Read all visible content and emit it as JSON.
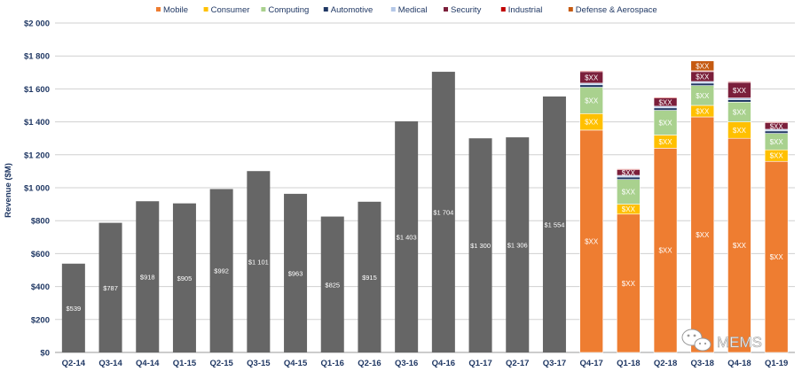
{
  "chart_data": {
    "type": "bar",
    "ylabel": "Revenue ($M)",
    "ylim": [
      0,
      2000
    ],
    "yticks": [
      0,
      200,
      400,
      600,
      800,
      1000,
      1200,
      1400,
      1600,
      1800,
      2000
    ],
    "ytick_labels": [
      "$0",
      "$200",
      "$400",
      "$600",
      "$800",
      "$1 000",
      "$1 200",
      "$1 400",
      "$1 600",
      "$1 800",
      "$2 000"
    ],
    "grid": true,
    "legend_position": "top",
    "categories": [
      "Q2-14",
      "Q3-14",
      "Q4-14",
      "Q1-15",
      "Q2-15",
      "Q3-15",
      "Q4-15",
      "Q1-16",
      "Q2-16",
      "Q3-16",
      "Q4-16",
      "Q1-17",
      "Q2-17",
      "Q3-17",
      "Q4-17",
      "Q1-18",
      "Q2-18",
      "Q3-18",
      "Q4-18",
      "Q1-19"
    ],
    "totals": [
      539,
      787,
      918,
      905,
      992,
      1101,
      963,
      825,
      915,
      1403,
      1704,
      1300,
      1306,
      1554,
      null,
      null,
      null,
      null,
      null,
      null
    ],
    "total_labels": [
      "$539",
      "$787",
      "$918",
      "$905",
      "$992",
      "$1 101",
      "$963",
      "$825",
      "$915",
      "$1 403",
      "$1 704",
      "$1 300",
      "$1 306",
      "$1 554"
    ],
    "total_color": "#666666",
    "series": [
      {
        "name": "Mobile",
        "color": "#ee7d31",
        "values": [
          null,
          null,
          null,
          null,
          null,
          null,
          null,
          null,
          null,
          null,
          null,
          null,
          null,
          null,
          1350,
          840,
          1240,
          1430,
          1300,
          1160
        ]
      },
      {
        "name": "Consumer",
        "color": "#ffc000",
        "values": [
          null,
          null,
          null,
          null,
          null,
          null,
          null,
          null,
          null,
          null,
          null,
          null,
          null,
          null,
          100,
          60,
          80,
          70,
          100,
          70
        ]
      },
      {
        "name": "Computing",
        "color": "#a9d18e",
        "values": [
          null,
          null,
          null,
          null,
          null,
          null,
          null,
          null,
          null,
          null,
          null,
          null,
          null,
          null,
          160,
          150,
          150,
          120,
          120,
          100
        ]
      },
      {
        "name": "Automotive",
        "color": "#203864",
        "values": [
          null,
          null,
          null,
          null,
          null,
          null,
          null,
          null,
          null,
          null,
          null,
          null,
          null,
          null,
          15,
          15,
          15,
          15,
          15,
          15
        ]
      },
      {
        "name": "Medical",
        "color": "#b4c7e7",
        "values": [
          null,
          null,
          null,
          null,
          null,
          null,
          null,
          null,
          null,
          null,
          null,
          null,
          null,
          null,
          10,
          10,
          10,
          10,
          10,
          10
        ]
      },
      {
        "name": "Security",
        "color": "#7b1f3b",
        "values": [
          null,
          null,
          null,
          null,
          null,
          null,
          null,
          null,
          null,
          null,
          null,
          null,
          null,
          null,
          70,
          35,
          50,
          60,
          95,
          40
        ]
      },
      {
        "name": "Industrial",
        "color": "#c00000",
        "values": [
          null,
          null,
          null,
          null,
          null,
          null,
          null,
          null,
          null,
          null,
          null,
          null,
          null,
          null,
          5,
          5,
          5,
          5,
          5,
          5
        ]
      },
      {
        "name": "Defense & Aerospace",
        "color": "#c55a11",
        "values": [
          null,
          null,
          null,
          null,
          null,
          null,
          null,
          null,
          null,
          null,
          null,
          null,
          null,
          null,
          0,
          0,
          0,
          60,
          0,
          0
        ]
      }
    ],
    "segment_labels": {
      "Mobile": "$XX",
      "Consumer": "$XX",
      "Computing": "$XX",
      "Security": "$XX",
      "Defense & Aerospace": "$XX"
    }
  },
  "watermark": {
    "text": "MEMS",
    "icon": "wechat-icon"
  }
}
